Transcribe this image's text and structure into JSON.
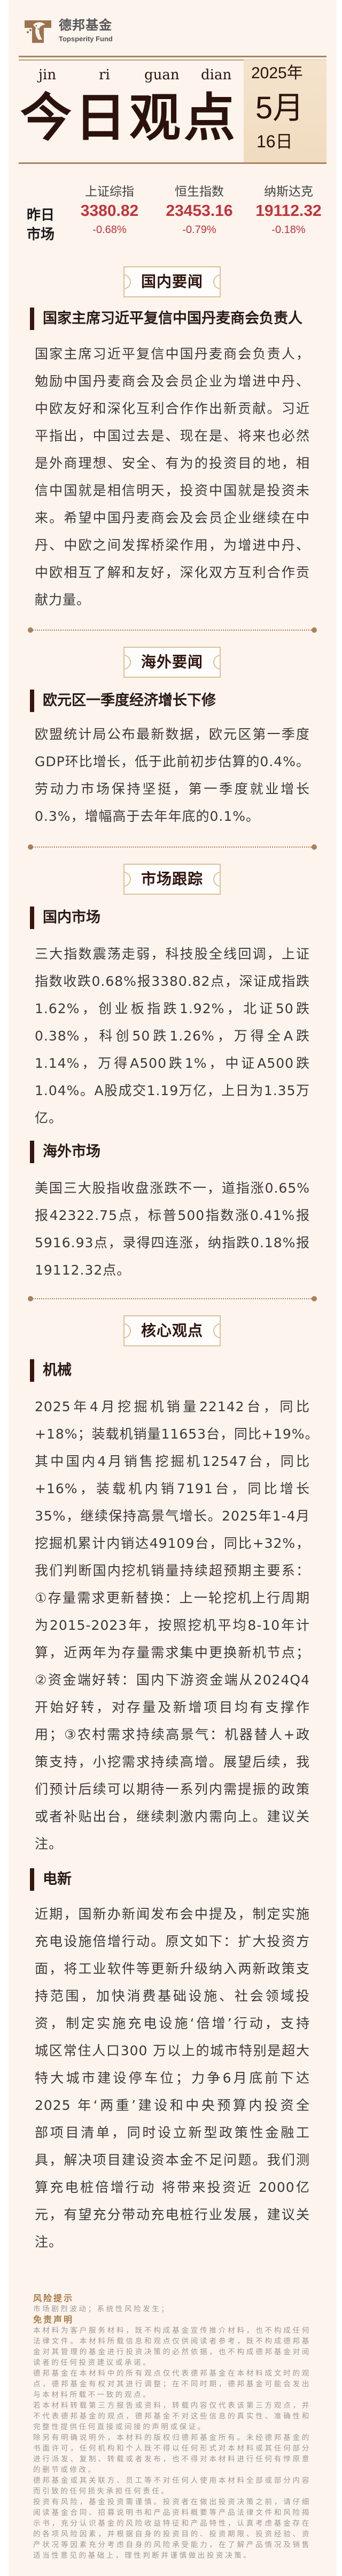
{
  "brand": {
    "name_cn": "德邦基金",
    "name_en": "Topsperity Fund",
    "logo_color": "#9a7350"
  },
  "header": {
    "pinyin": [
      "jin",
      "ri",
      "guan",
      "dian"
    ],
    "title": "今日观点",
    "date": {
      "year": "2025年",
      "month": "5月",
      "day": "16日"
    }
  },
  "market": {
    "label_line1": "昨日",
    "label_line2": "市场",
    "indices": [
      {
        "name": "上证综指",
        "value": "3380.82",
        "change": "-0.68%"
      },
      {
        "name": "恒生指数",
        "value": "23453.16",
        "change": "-0.79%"
      },
      {
        "name": "纳斯达克",
        "value": "19112.32",
        "change": "-0.18%"
      }
    ],
    "down_color": "#c1343b"
  },
  "sections": [
    {
      "title": "国内要闻",
      "items": [
        {
          "heading": "国家主席习近平复信中国丹麦商会负责人",
          "lines": [
            "国家主席习近平复信中国丹麦商会负责人，",
            "勉励中国丹麦商会及会员企业为增进中丹、",
            "中欧友好和深化互利合作作出新贡献。习近",
            "平指出，中国过去是、现在是、将来也必然",
            "是外商理想、安全、有为的投资目的地，相",
            "信中国就是相信明天，投资中国就是投资未",
            "来。希望中国丹麦商会及会员企业继续在中",
            "丹、中欧之间发挥桥梁作用，为增进中丹、",
            "中欧相互了解和友好，深化双方互利合作贡",
            "献力量。"
          ]
        }
      ]
    },
    {
      "title": "海外要闻",
      "items": [
        {
          "heading": "欧元区一季度经济增长下修",
          "lines": [
            "欧盟统计局公布最新数据，欧元区第一季度",
            "GDP环比增长，低于此前初步估算的0.4%。",
            "劳动力市场保持坚挺，第一季度就业增长",
            "0.3%，增幅高于去年年底的0.1%。"
          ]
        }
      ]
    },
    {
      "title": "市场跟踪",
      "items": [
        {
          "heading": "国内市场",
          "lines": [
            "三大指数震荡走弱，科技股全线回调，上证",
            "指数收跌0.68%报3380.82点，深证成指跌",
            "1.62%，创业板指跌1.92%，北证50跌",
            "0.38%，科创50跌1.26%，万得全A跌",
            "1.14%，万得A500跌1%，中证A500跌",
            "1.04%。A股成交1.19万亿，上日为1.35万",
            "亿。"
          ]
        },
        {
          "heading": "海外市场",
          "lines": [
            "美国三大股指收盘涨跌不一，道指涨0.65%",
            "报42322.75点，标普500指数涨0.41%报",
            "5916.93点，录得四连涨，纳指跌0.18%报",
            "19112.32点。"
          ]
        }
      ]
    },
    {
      "title": "核心观点",
      "items": [
        {
          "heading": "机械",
          "lines": [
            "2025年4月挖掘机销量22142台，同比",
            "+18%；装载机销量11653台，同比+19%。",
            "其中国内4月销售挖掘机12547台，同比",
            "+16%，装载机内销7191台，同比增长",
            "35%，继续保持高景气增长。2025年1-4月",
            "挖掘机累计内销达49109台，同比+32%，",
            "我们判断国内挖机销量持续超预期主要系：",
            "①存量需求更新替换：上一轮挖机上行周期",
            "为2015-2023年，按照挖机平均8-10年计",
            "算，近两年为存量需求集中更换新机节点；",
            "②资金端好转：国内下游资金端从2024Q4",
            "开始好转，对存量及新增项目均有支撑作",
            "用；③农村需求持续高景气：机器替人+政",
            "策支持，小挖需求持续高增。展望后续，我",
            "们预计后续可以期待一系列内需提振的政策",
            "或者补贴出台，继续刺激内需向上。建议关",
            "注。"
          ]
        },
        {
          "heading": "电新",
          "lines": [
            "近期，国新办新闻发布会中提及，制定实施",
            "充电设施倍增行动。原文如下：扩大投资方",
            "面，将工业软件等更新升级纳入两新政策支",
            "持范围，加快消费基础设施、社会领域投",
            "资，制定实施充电设施‘倍增’行动，支持",
            "城区常住人口300 万以上的城市特别是超大",
            "特大城市建设停车位；力争6月底前下达",
            "2025 年‘两重’建设和中央预算内投资全",
            "部项目清单，同时设立新型政策性金融工",
            "具，解决项目建设资本金不足问题。我们测",
            "算充电桩倍增行动 将带来投资近 2000亿",
            "元，有望充分带动充电桩行业发展，建议关",
            "注。"
          ]
        }
      ]
    }
  ],
  "footer": {
    "risk_title": "风险提示",
    "risk_text": "市场剧烈波动；系统性风险发生；",
    "disclaimer_title": "免责声明",
    "paragraphs": [
      [
        "本材料为客户服务材料，既不构成基金宣传推介材料，也不构成任何",
        "法律文件。本材料所载信息和观点仅供阅读者参考，既不构成德邦基",
        "金对其管理的基金进行投资决策的必然依据，也不构成德邦基金对阅",
        "读者的任何投资建议或承诺。"
      ],
      [
        "德邦基金在本材料中的所有观点仅代表德邦基金在本材料成文时的观",
        "点，德邦基金有权对其进行调整；在不同时期，德邦基金可能会发出",
        "与本材料所载不一致的观点。"
      ],
      [
        "若本材料转载第三方报告或资料，转载内容仅代表该第三方观点，并",
        "不代表德邦基金的观点，德邦基金不对这些信息的真实性、准确性和",
        "完整性提供任何直接或间接的声明或保证。"
      ],
      [
        "除另有明确说明外，本材料的版权归德邦基金所有。未经德邦基金的",
        "书面许可，任何机构和个人既不得以任何形式对本材料或其任何部分",
        "进行派发、复制、转载或者发布，也不得对本材料进行任何有悖原意",
        "的删节或修改。"
      ],
      [
        "德邦基金或其关联方、员工等不对任何人使用本材料全部或部分内容",
        "而引致的任何损失承担任何责任。"
      ],
      [
        "投资有风险，基金投资需谨慎。投资者在做出投资决策之前，请仔细",
        "阅读基金合同、招募说明书和产品资料概要等产品法律文件和风险揭",
        "示书，充分认识基金的风险收益特征和产品特性，认真考虑基金存在",
        "的各项风险因素，并根据自身的投资目的、投资期限、投资经验、资",
        "产状况等因素充分考虑自身的风险承受能力，在了解产品情况及销售",
        "适当性意见的基础上，理性判断并谨慎做出投资决策。"
      ]
    ]
  },
  "colors": {
    "panel_bg": "#fdf4ee",
    "title": "#2b120c",
    "accent_gold": "#a98259",
    "date_box": "#f2dec3"
  }
}
